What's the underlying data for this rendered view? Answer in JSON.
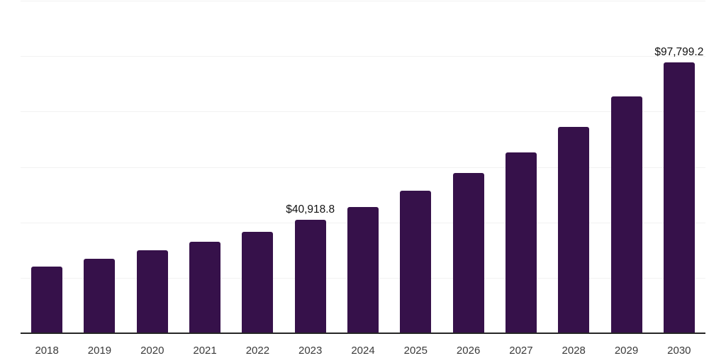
{
  "chart_data": {
    "type": "bar",
    "title": "",
    "xlabel": "",
    "ylabel": "",
    "categories": [
      "2018",
      "2019",
      "2020",
      "2021",
      "2022",
      "2023",
      "2024",
      "2025",
      "2026",
      "2027",
      "2028",
      "2029",
      "2030"
    ],
    "values": [
      24100,
      26900,
      29900,
      33000,
      36500,
      40918.8,
      45600,
      51350,
      57800,
      65300,
      74450,
      85550,
      97799.2
    ],
    "data_labels": {
      "2023": "$40,918.8",
      "2030": "$97,799.2"
    },
    "ylim": [
      0,
      120000
    ],
    "gridlines": [
      0,
      20000,
      40000,
      60000,
      80000,
      100000,
      120000
    ],
    "grid": true,
    "legend": false,
    "colors": {
      "bar": "#36114a",
      "axis_line": "#262626",
      "gridline": "#f2f2f2",
      "data_label": "#111111",
      "tick_label": "#3a3a3a",
      "background": "#ffffff"
    }
  }
}
